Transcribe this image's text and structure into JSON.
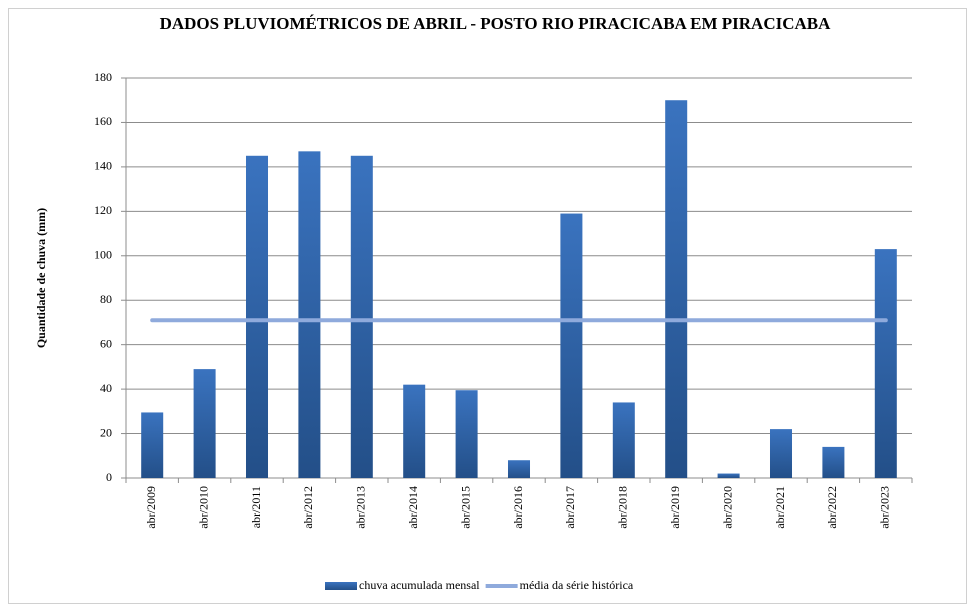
{
  "chart_data": {
    "type": "bar",
    "title": "DADOS PLUVIOMÉTRICOS DE ABRIL - POSTO RIO PIRACICABA EM PIRACICABA",
    "y_label": "Quantidade de chuva (mm)",
    "categories": [
      "abr/2009",
      "abr/2010",
      "abr/2011",
      "abr/2012",
      "abr/2013",
      "abr/2014",
      "abr/2015",
      "abr/2016",
      "abr/2017",
      "abr/2018",
      "abr/2019",
      "abr/2020",
      "abr/2021",
      "abr/2022",
      "abr/2023"
    ],
    "series": [
      {
        "name": "chuva acumulada mensal",
        "type": "bar",
        "color": "#2e5e9e",
        "values": [
          29.5,
          49,
          145,
          147,
          145,
          42,
          39.5,
          8,
          119,
          34,
          170,
          2,
          22,
          14,
          103
        ]
      },
      {
        "name": "média da série histórica",
        "type": "line",
        "color": "#8faadc",
        "values": [
          71,
          71,
          71,
          71,
          71,
          71,
          71,
          71,
          71,
          71,
          71,
          71,
          71,
          71,
          71
        ]
      }
    ],
    "ylim": [
      0,
      180
    ],
    "yticks": [
      0,
      20,
      40,
      60,
      80,
      100,
      120,
      140,
      160,
      180
    ],
    "grid": true,
    "legend": "bottom"
  }
}
